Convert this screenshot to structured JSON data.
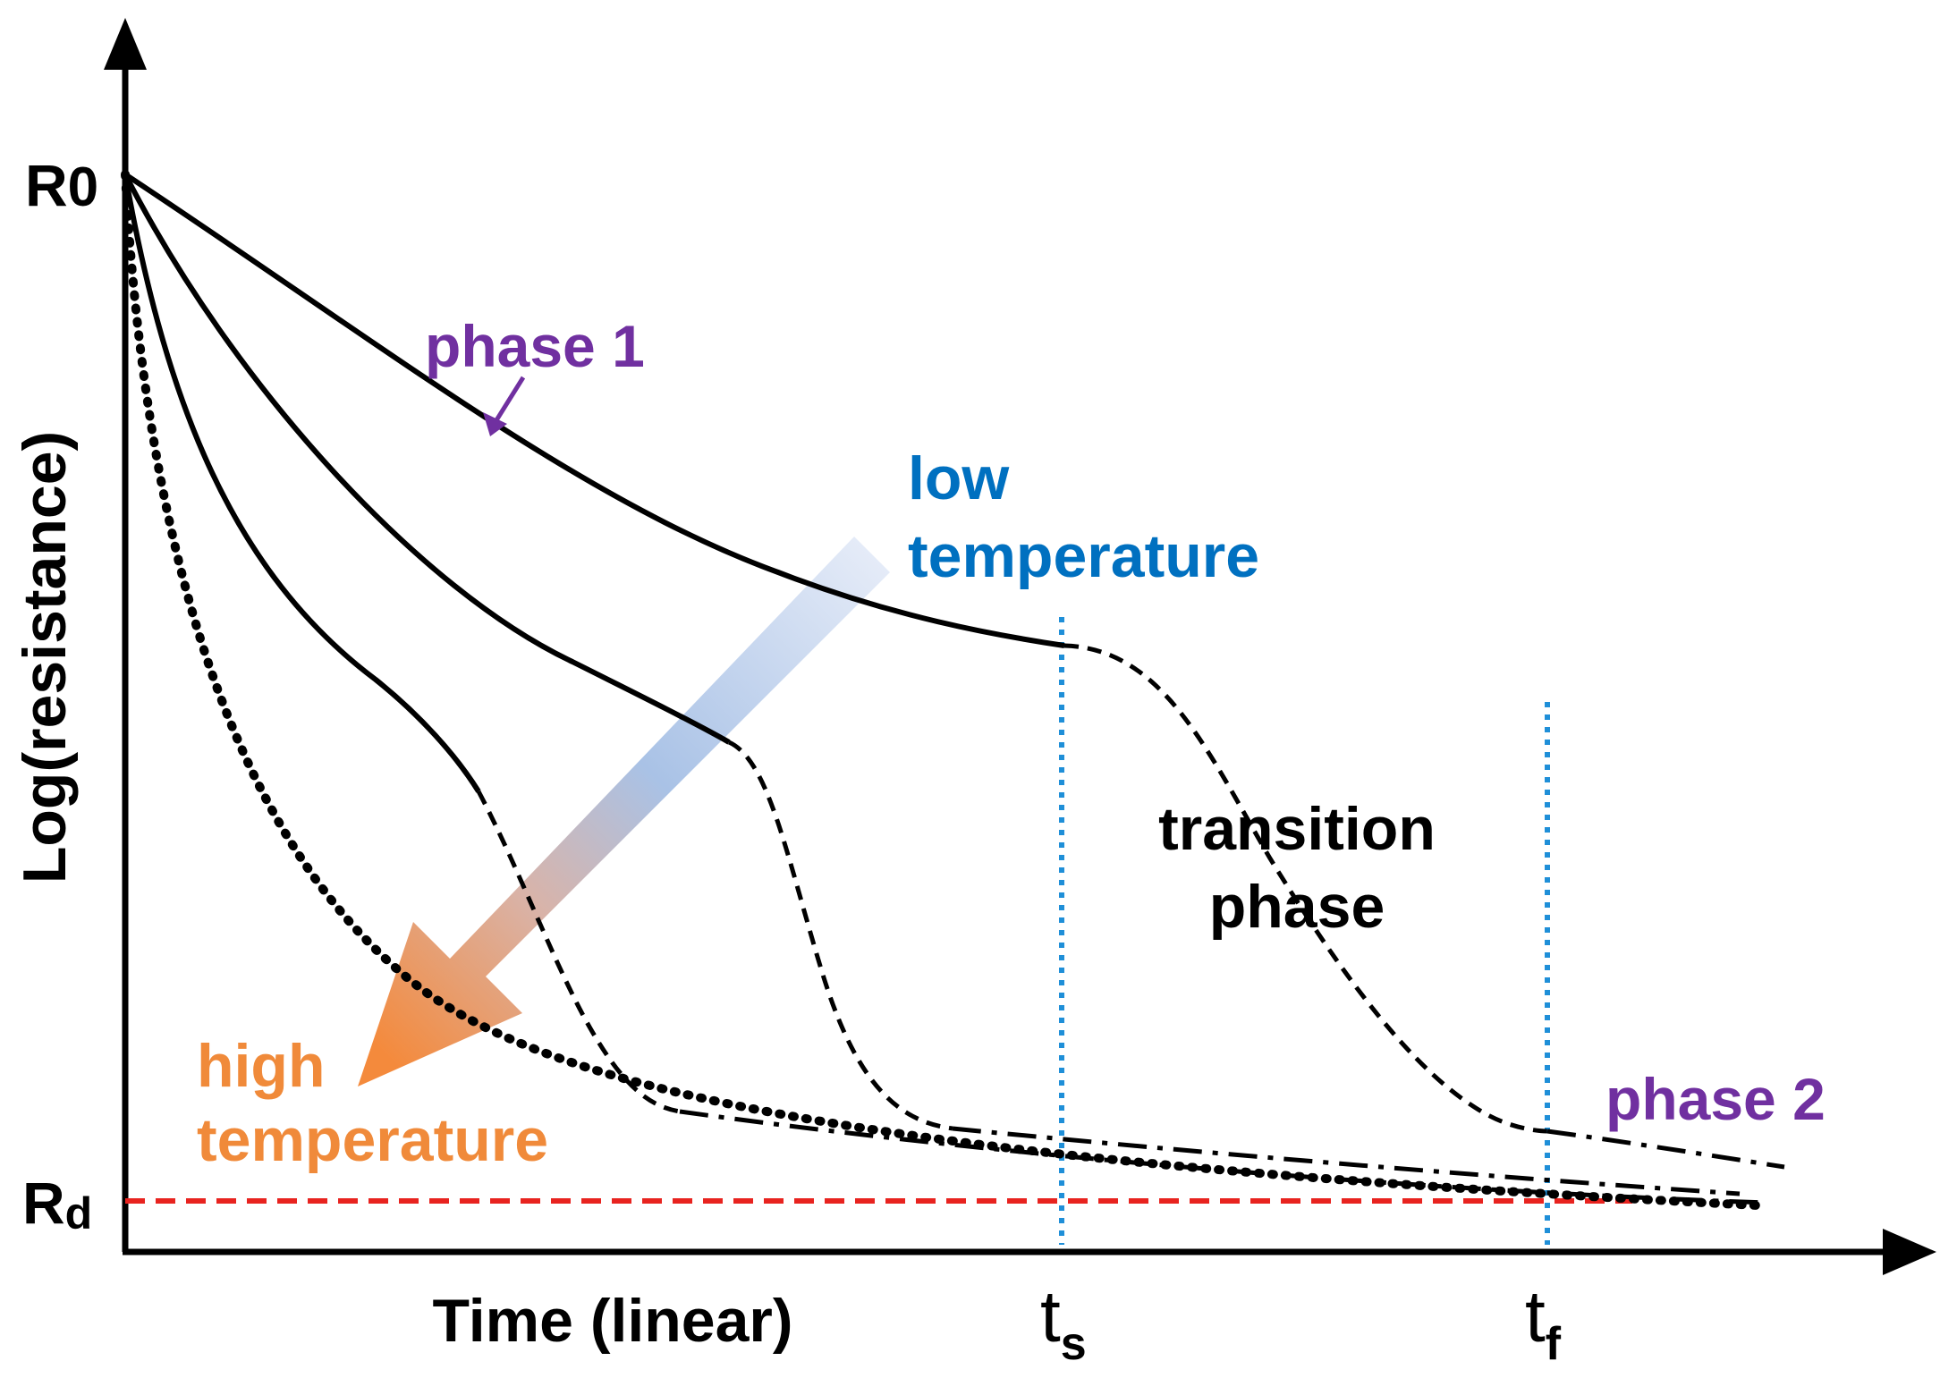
{
  "axes": {
    "y_label": "Log(resistance)",
    "x_label": "Time (linear)",
    "y_top_tick": {
      "main": "R",
      "sub": "0"
    },
    "y_bottom_tick": {
      "main": "R",
      "sub": "d"
    },
    "x_tick_start": {
      "main": "t",
      "sub": "s"
    },
    "x_tick_end": {
      "main": "t",
      "sub": "f"
    }
  },
  "annotations": {
    "phase1": "phase 1",
    "phase2": "phase 2",
    "transition_line1": "transition",
    "transition_line2": "phase",
    "low_line1": "low",
    "low_line2": "temperature",
    "high_line1": "high",
    "high_line2": "temperature"
  },
  "colors": {
    "purple": "#7030A0",
    "blue": "#0070C0",
    "orange": "#F08A3A",
    "red": "#E8231F",
    "dotted_blue": "#1F8FD8",
    "black": "#000000"
  }
}
